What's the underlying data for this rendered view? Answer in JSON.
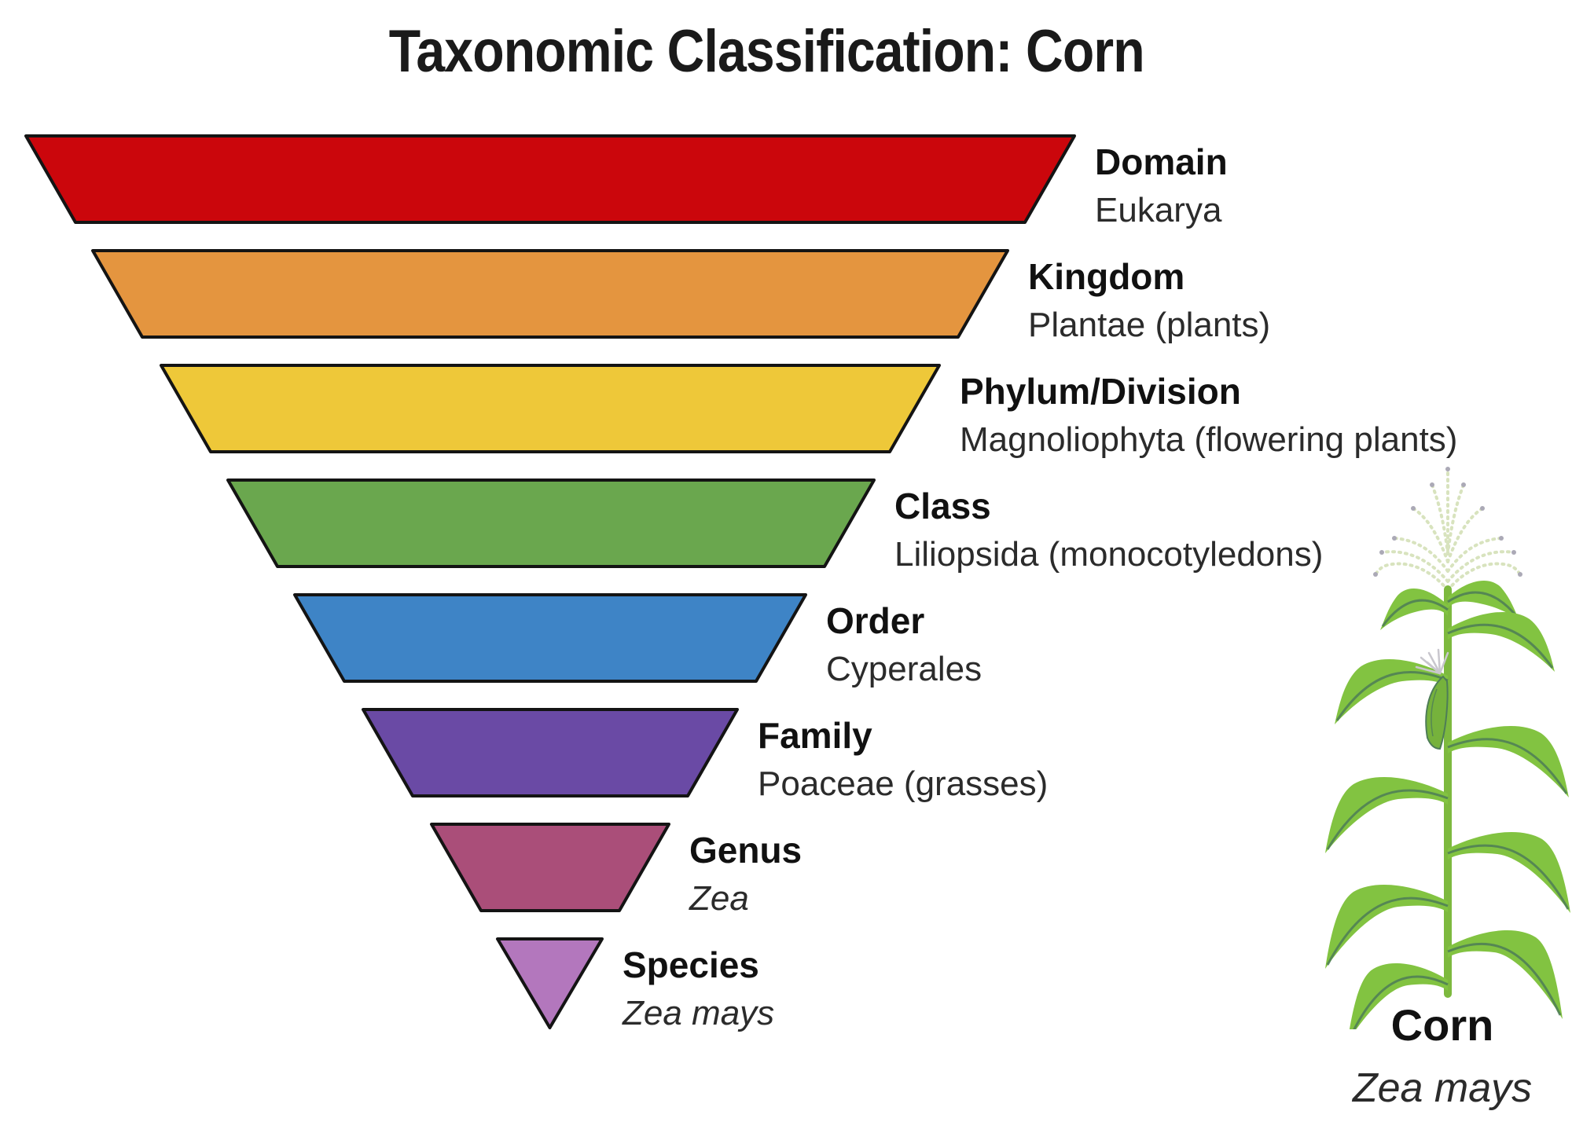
{
  "title": "Taxonomic Classification: Corn",
  "diagram_type": "inverted-pyramid-funnel",
  "funnel": {
    "outline_color": "#141414",
    "levels": [
      {
        "rank": "Domain",
        "value": "Eukarya",
        "color": "#CB060C",
        "value_italic": false
      },
      {
        "rank": "Kingdom",
        "value": "Plantae (plants)",
        "color": "#E4953F",
        "value_italic": false
      },
      {
        "rank": "Phylum/Division",
        "value": "Magnoliophyta (flowering plants)",
        "color": "#EEC839",
        "value_italic": false
      },
      {
        "rank": "Class",
        "value": "Liliopsida (monocotyledons)",
        "color": "#6AA74E",
        "value_italic": false
      },
      {
        "rank": "Order",
        "value": "Cyperales",
        "color": "#3E84C6",
        "value_italic": false
      },
      {
        "rank": "Family",
        "value": "Poaceae (grasses)",
        "color": "#6A4AA5",
        "value_italic": false
      },
      {
        "rank": "Genus",
        "value": "Zea",
        "color": "#AA4E79",
        "value_italic": true
      },
      {
        "rank": "Species",
        "value": "Zea mays",
        "color": "#B377BD",
        "value_italic": true
      }
    ]
  },
  "plant": {
    "common_name": "Corn",
    "scientific_name": "Zea mays",
    "leaf_color": "#82C341",
    "vein_color": "#4E7D57",
    "stem_color": "#7DB93E",
    "tassel_color": "#D8E3BE",
    "tassel_tip_color": "#ABA9B6",
    "silk_color": "#C9C7CE",
    "ear_color": "#76B23C"
  }
}
